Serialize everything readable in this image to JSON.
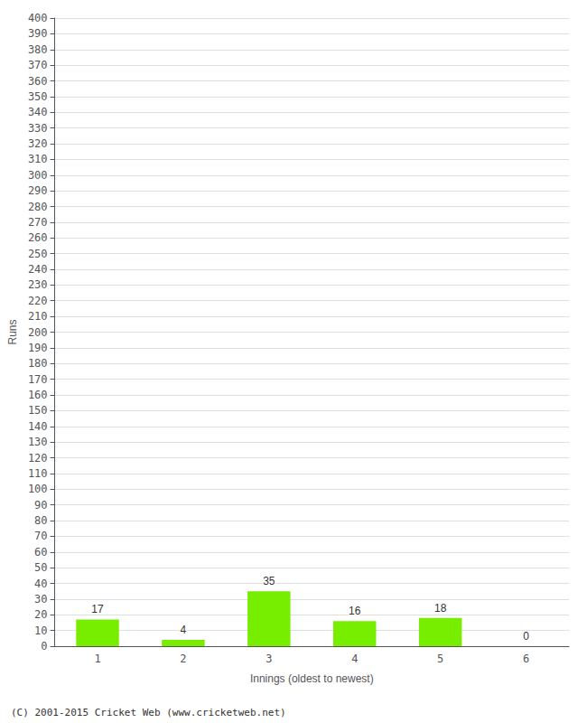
{
  "chart_data": {
    "type": "bar",
    "xlabel": "Innings (oldest to newest)",
    "ylabel": "Runs",
    "categories": [
      "1",
      "2",
      "3",
      "4",
      "5",
      "6"
    ],
    "values": [
      17,
      4,
      35,
      16,
      18,
      0
    ],
    "color": "#77ee00",
    "ylim": [
      0,
      400
    ],
    "yticks": [
      0,
      10,
      20,
      30,
      40,
      50,
      60,
      70,
      80,
      90,
      100,
      110,
      120,
      130,
      140,
      150,
      160,
      170,
      180,
      190,
      200,
      210,
      220,
      230,
      240,
      250,
      260,
      270,
      280,
      290,
      300,
      310,
      320,
      330,
      340,
      350,
      360,
      370,
      380,
      390,
      400
    ],
    "grid": true,
    "data_labels": true,
    "annotations": [
      "(C) 2001-2015 Cricket Web (www.cricketweb.net)"
    ]
  }
}
